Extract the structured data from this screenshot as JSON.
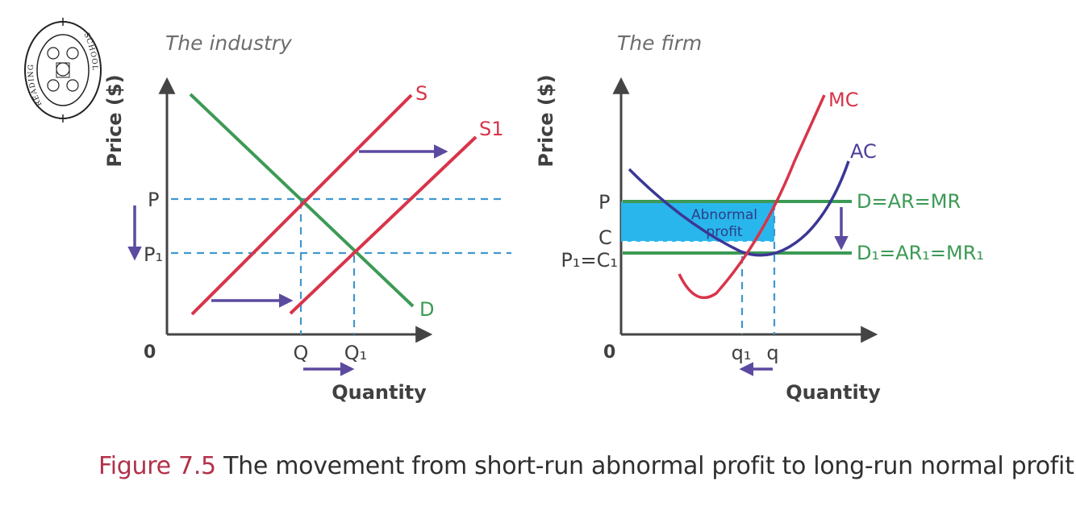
{
  "caption": {
    "figure_label": "Figure 7.5",
    "text": "The movement from short-run abnormal profit to long-run normal profit"
  },
  "logo": {
    "name": "school-crest",
    "text_left": "READING",
    "text_right": "SCHOOL"
  },
  "industry": {
    "title": "The industry",
    "ylabel": "Price ($)",
    "xlabel": "Quantity",
    "origin": "0",
    "curves": {
      "supply": "S",
      "supply_shifted": "S1",
      "demand": "D"
    },
    "y_ticks": [
      "P",
      "P₁"
    ],
    "x_ticks": [
      "Q",
      "Q₁"
    ]
  },
  "firm": {
    "title": "The firm",
    "ylabel": "Price ($)",
    "xlabel": "Quantity",
    "origin": "0",
    "curves": {
      "mc": "MC",
      "ac": "AC",
      "demand_initial": "D=AR=MR",
      "demand_new": "D₁=AR₁=MR₁"
    },
    "y_ticks": [
      "P",
      "C",
      "P₁=C₁"
    ],
    "x_ticks": [
      "q₁",
      "q"
    ],
    "area_label_line1": "Abnormal",
    "area_label_line2": "profit"
  },
  "colors": {
    "supply": "#d8344a",
    "demand": "#3c9a55",
    "ac": "#3b3796",
    "arrow": "#5c4aa0",
    "guide": "#3f97cf",
    "profit_area": "#29b6ec",
    "axis": "#444444"
  }
}
